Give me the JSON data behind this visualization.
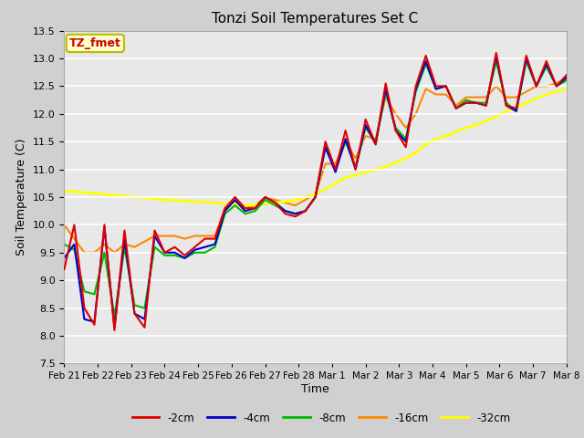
{
  "title": "Tonzi Soil Temperatures Set C",
  "xlabel": "Time",
  "ylabel": "Soil Temperature (C)",
  "ylim": [
    7.5,
    13.5
  ],
  "annotation_text": "TZ_fmet",
  "annotation_bg": "#ffffcc",
  "annotation_border": "#bbbb00",
  "series": [
    {
      "label": "-2cm",
      "color": "#dd0000"
    },
    {
      "label": "-4cm",
      "color": "#0000cc"
    },
    {
      "label": "-8cm",
      "color": "#00bb00"
    },
    {
      "label": "-16cm",
      "color": "#ff8800"
    },
    {
      "label": "-32cm",
      "color": "#ffff00"
    }
  ],
  "xtick_labels": [
    "Feb 21",
    "Feb 22",
    "Feb 23",
    "Feb 24",
    "Feb 25",
    "Feb 26",
    "Feb 27",
    "Feb 28",
    "Mar 1",
    "Mar 2",
    "Mar 3",
    "Mar 4",
    "Mar 5",
    "Mar 6",
    "Mar 7",
    "Mar 8"
  ],
  "data_2cm": [
    9.2,
    10.0,
    8.5,
    8.2,
    10.0,
    8.1,
    9.9,
    8.4,
    8.15,
    9.9,
    9.5,
    9.6,
    9.45,
    9.6,
    9.75,
    9.75,
    10.3,
    10.5,
    10.3,
    10.3,
    10.5,
    10.4,
    10.2,
    10.15,
    10.25,
    10.5,
    11.5,
    11.0,
    11.7,
    11.0,
    11.9,
    11.45,
    12.55,
    11.7,
    11.4,
    12.5,
    13.05,
    12.5,
    12.5,
    12.1,
    12.2,
    12.2,
    12.15,
    13.1,
    12.15,
    12.1,
    13.05,
    12.5,
    12.95,
    12.5,
    12.7
  ],
  "data_4cm": [
    9.4,
    9.65,
    8.3,
    8.25,
    9.95,
    8.15,
    9.75,
    8.4,
    8.3,
    9.8,
    9.5,
    9.5,
    9.4,
    9.55,
    9.6,
    9.65,
    10.25,
    10.45,
    10.25,
    10.3,
    10.5,
    10.4,
    10.25,
    10.2,
    10.25,
    10.5,
    11.4,
    10.95,
    11.55,
    11.0,
    11.8,
    11.45,
    12.45,
    11.7,
    11.5,
    12.45,
    12.95,
    12.45,
    12.5,
    12.1,
    12.2,
    12.2,
    12.15,
    13.05,
    12.15,
    12.05,
    13.0,
    12.5,
    12.9,
    12.5,
    12.65
  ],
  "data_8cm": [
    9.65,
    9.55,
    8.8,
    8.75,
    9.5,
    8.35,
    9.6,
    8.55,
    8.5,
    9.6,
    9.45,
    9.45,
    9.4,
    9.5,
    9.5,
    9.6,
    10.2,
    10.35,
    10.2,
    10.25,
    10.45,
    10.35,
    10.25,
    10.2,
    10.25,
    10.5,
    11.4,
    11.0,
    11.5,
    11.05,
    11.75,
    11.5,
    12.4,
    11.75,
    11.55,
    12.4,
    12.9,
    12.45,
    12.5,
    12.1,
    12.25,
    12.2,
    12.2,
    12.95,
    12.2,
    12.05,
    12.95,
    12.5,
    12.85,
    12.5,
    12.6
  ],
  "data_16cm": [
    10.0,
    9.75,
    9.5,
    9.5,
    9.65,
    9.5,
    9.65,
    9.6,
    9.7,
    9.8,
    9.8,
    9.8,
    9.75,
    9.8,
    9.8,
    9.8,
    10.3,
    10.4,
    10.3,
    10.35,
    10.5,
    10.45,
    10.4,
    10.35,
    10.45,
    10.55,
    11.1,
    11.1,
    11.5,
    11.2,
    11.6,
    11.55,
    12.3,
    12.0,
    11.75,
    12.0,
    12.45,
    12.35,
    12.35,
    12.15,
    12.3,
    12.3,
    12.3,
    12.5,
    12.3,
    12.3,
    12.4,
    12.5,
    12.5,
    12.55,
    12.65
  ],
  "data_32cm": [
    10.6,
    10.6,
    10.58,
    10.57,
    10.55,
    10.53,
    10.52,
    10.5,
    10.49,
    10.47,
    10.45,
    10.44,
    10.43,
    10.42,
    10.41,
    10.4,
    10.38,
    10.37,
    10.35,
    10.36,
    10.38,
    10.4,
    10.42,
    10.45,
    10.5,
    10.55,
    10.65,
    10.75,
    10.85,
    10.9,
    10.95,
    11.0,
    11.05,
    11.12,
    11.2,
    11.3,
    11.45,
    11.55,
    11.6,
    11.68,
    11.75,
    11.8,
    11.88,
    11.95,
    12.05,
    12.12,
    12.2,
    12.28,
    12.35,
    12.4,
    12.45
  ]
}
